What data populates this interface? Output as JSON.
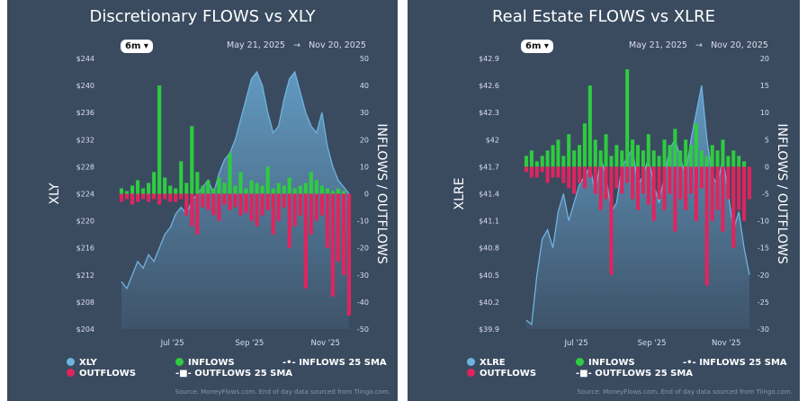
{
  "chart_data": [
    {
      "type": "bar+area",
      "title": "Discretionary FLOWS vs XLY",
      "range_button": "6m",
      "date_start": "May 21, 2025",
      "date_arrow": "→",
      "date_end": "Nov 20, 2025",
      "ylabel_left": "XLY",
      "ylabel_right": "INFLOWS / OUTFLOWS",
      "left_ticks": [
        "$244",
        "$240",
        "$236",
        "$232",
        "$228",
        "$224",
        "$220",
        "$216",
        "$212",
        "$208",
        "$204"
      ],
      "ylim_left": [
        204,
        244
      ],
      "right_ticks": [
        "50",
        "40",
        "30",
        "20",
        "10",
        "0",
        "-10",
        "-20",
        "-30",
        "-40",
        "-50"
      ],
      "ylim_right": [
        -50,
        50
      ],
      "x_ticks": [
        "Jul '25",
        "Sep '25",
        "Nov '25"
      ],
      "price": [
        211,
        210,
        212,
        214,
        213,
        215,
        214,
        216,
        218,
        219,
        221,
        222,
        221,
        223,
        224,
        225,
        226,
        224,
        227,
        229,
        230,
        232,
        235,
        238,
        241,
        242,
        240,
        236,
        233,
        234,
        238,
        241,
        242,
        239,
        236,
        234,
        233,
        236,
        231,
        228,
        226,
        225,
        224
      ],
      "inflows": [
        2,
        1,
        3,
        5,
        2,
        4,
        8,
        40,
        6,
        3,
        2,
        12,
        4,
        25,
        8,
        3,
        5,
        2,
        6,
        4,
        15,
        3,
        8,
        2,
        5,
        4,
        3,
        10,
        2,
        4,
        3,
        6,
        2,
        3,
        4,
        8,
        5,
        3,
        2,
        1,
        2,
        1,
        0
      ],
      "outflows": [
        -3,
        -2,
        -4,
        -3,
        -2,
        -3,
        -2,
        -4,
        -2,
        -3,
        -3,
        -2,
        -8,
        -12,
        -15,
        -5,
        -6,
        -8,
        -10,
        -4,
        -6,
        -5,
        -8,
        -7,
        -10,
        -12,
        -8,
        -6,
        -15,
        -10,
        -5,
        -20,
        -12,
        -8,
        -35,
        -15,
        -10,
        -8,
        -20,
        -38,
        -25,
        -30,
        -45
      ],
      "legend": [
        "XLY",
        "OUTFLOWS",
        "INFLOWS",
        "OUTFLOWS 25 SMA",
        "INFLOWS 25 SMA"
      ],
      "source": "Source: MoneyFlows.com. End of day data sourced from Tiingo.com."
    },
    {
      "type": "bar+area",
      "title": "Real Estate FLOWS vs XLRE",
      "range_button": "6m",
      "date_start": "May 21, 2025",
      "date_arrow": "→",
      "date_end": "Nov 20, 2025",
      "ylabel_left": "XLRE",
      "ylabel_right": "INFLOWS / OUTFLOWS",
      "left_ticks": [
        "$42.9",
        "$42.6",
        "$42.3",
        "$42",
        "$41.7",
        "$41.4",
        "$41.1",
        "$40.8",
        "$40.5",
        "$40.2",
        "$39.9"
      ],
      "ylim_left": [
        39.9,
        42.9
      ],
      "right_ticks": [
        "20",
        "15",
        "10",
        "5",
        "0",
        "-5",
        "-10",
        "-15",
        "-20",
        "-25",
        "-30"
      ],
      "ylim_right": [
        -30,
        20
      ],
      "x_ticks": [
        "Jul '25",
        "Sep '25",
        "Nov '25"
      ],
      "price": [
        40.0,
        39.95,
        40.5,
        40.9,
        41.0,
        40.8,
        41.2,
        41.4,
        41.1,
        41.3,
        41.5,
        41.6,
        41.7,
        41.4,
        41.8,
        41.6,
        41.2,
        41.3,
        41.7,
        41.8,
        41.9,
        41.5,
        41.6,
        41.8,
        41.5,
        41.3,
        41.6,
        41.9,
        42.0,
        41.8,
        41.6,
        42.0,
        42.3,
        42.6,
        42.0,
        41.6,
        41.5,
        41.8,
        41.4,
        41.0,
        41.2,
        40.8,
        40.5
      ],
      "inflows": [
        2,
        3,
        1,
        2,
        3,
        4,
        5,
        2,
        6,
        3,
        4,
        8,
        15,
        5,
        3,
        6,
        2,
        4,
        3,
        18,
        5,
        4,
        3,
        6,
        3,
        2,
        5,
        4,
        7,
        3,
        5,
        4,
        8,
        3,
        2,
        4,
        3,
        5,
        2,
        3,
        2,
        1,
        0
      ],
      "outflows": [
        -1,
        -2,
        -2,
        -1,
        -3,
        -2,
        -2,
        -3,
        -4,
        -5,
        -3,
        -4,
        -2,
        -5,
        -8,
        -6,
        -20,
        -4,
        -5,
        -3,
        -6,
        -8,
        -5,
        -7,
        -10,
        -6,
        -8,
        -5,
        -12,
        -6,
        -8,
        -5,
        -10,
        -4,
        -22,
        -10,
        -8,
        -12,
        -6,
        -15,
        -8,
        -10,
        -6
      ],
      "legend": [
        "XLRE",
        "OUTFLOWS",
        "INFLOWS",
        "OUTFLOWS 25 SMA",
        "INFLOWS 25 SMA"
      ],
      "source": "Source: MoneyFlows.com. End of day data sourced from Tiingo.com."
    }
  ],
  "colors": {
    "panel": "#3a4b60",
    "price": "#6fb3e0",
    "inflow": "#2ecc40",
    "outflow": "#e0245e"
  }
}
